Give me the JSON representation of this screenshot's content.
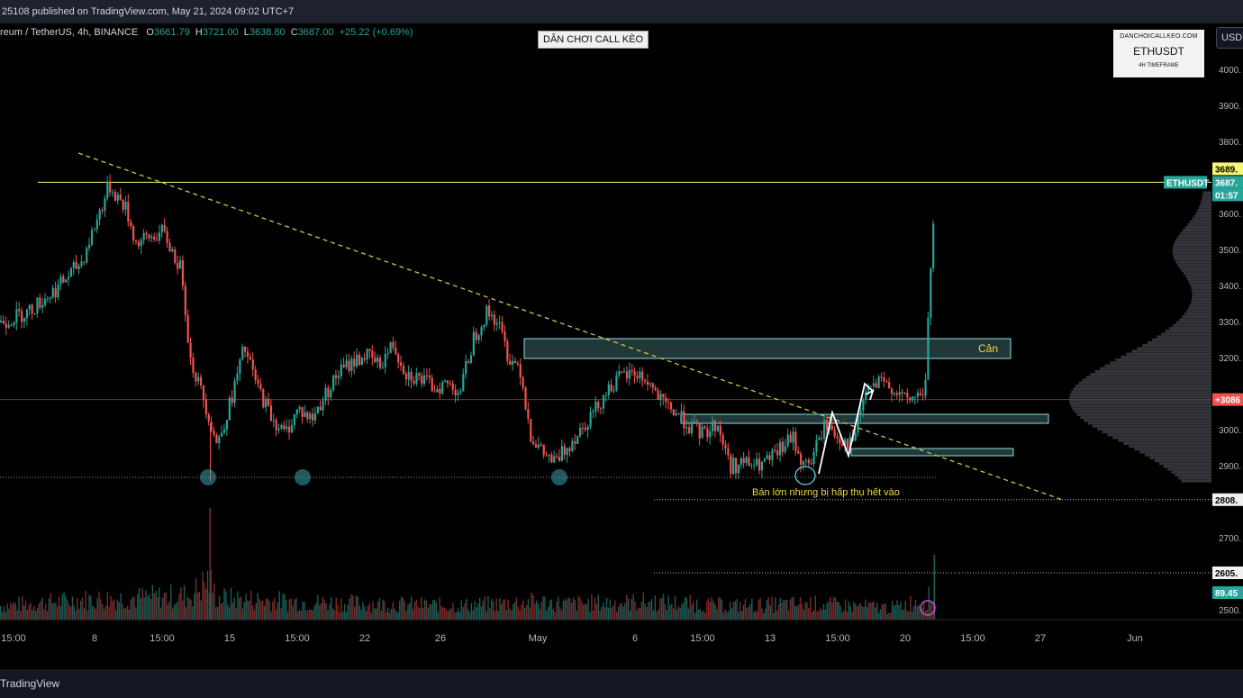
{
  "header": {
    "published": "25108 published on TradingView.com, May 21, 2024 09:02 UTC+7"
  },
  "legend": {
    "symbol": "reum / TetherUS, 4h, BINANCE",
    "o_label": "O",
    "o": "3661.79",
    "h_label": "H",
    "h": "3721.00",
    "l_label": "L",
    "l": "3638.80",
    "c_label": "C",
    "c": "3687.00",
    "change": "+25.22 (+0.69%)"
  },
  "title_box": "DÂN CHƠI CALL KÈO",
  "watermark": {
    "site": "DANCHOICALLKEO.COM",
    "pair": "ETHUSDT",
    "timeframe": "4H TIMEFRAME"
  },
  "currency_button": "USDT",
  "footer": {
    "brand": "TradingView"
  },
  "colors": {
    "up": "#26a69a",
    "down": "#ef5350",
    "resistance": "#f5f576",
    "trendline": "#c8c84a",
    "box_border": "#8fdcdc",
    "annotation": "#f5d547",
    "background": "#000000"
  },
  "annotations": {
    "resistance_zone": "Cản",
    "absorption_note": "Bán lớn nhưng bị hấp thụ hết vào"
  },
  "price_tags": {
    "ethusdt_label": "ETHUSDT",
    "last_price": "3687.",
    "countdown": "01:57",
    "resistance_price": "3689.",
    "poc_price": "+3086",
    "support_1": "2808.",
    "support_2": "2605.",
    "volume_value": "89.45"
  },
  "chart_data": {
    "type": "candlestick",
    "symbol": "ETHUSDT",
    "timeframe": "4h",
    "yticks": [
      2500,
      2600,
      2700,
      2800,
      2900,
      3000,
      3100,
      3200,
      3300,
      3400,
      3500,
      3600,
      3700,
      3800,
      3900,
      4000
    ],
    "ytick_labels": [
      "2500.",
      "2600.",
      "2700.",
      "2800.",
      "2900.",
      "3000.",
      "",
      "3200.",
      "3300.",
      "3400.",
      "3500.",
      "3600.",
      "",
      "3800.",
      "3900.",
      "4000."
    ],
    "ylim": [
      2475,
      4130
    ],
    "x_labels": [
      {
        "label": "15:00",
        "x": 0.5
      },
      {
        "label": "8",
        "x": 3.5
      },
      {
        "label": "15:00",
        "x": 6
      },
      {
        "label": "15",
        "x": 8.5
      },
      {
        "label": "15:00",
        "x": 11
      },
      {
        "label": "22",
        "x": 13.5
      },
      {
        "label": "26",
        "x": 16.3
      },
      {
        "label": "May",
        "x": 19.9
      },
      {
        "label": "6",
        "x": 23.5
      },
      {
        "label": "15:00",
        "x": 26
      },
      {
        "label": "13",
        "x": 28.5
      },
      {
        "label": "15:00",
        "x": 31
      },
      {
        "label": "20",
        "x": 33.5
      },
      {
        "label": "15:00",
        "x": 36
      },
      {
        "label": "27",
        "x": 38.5
      },
      {
        "label": "Jun",
        "x": 42
      }
    ],
    "xlim": [
      0,
      46
    ],
    "price_path": [
      [
        0,
        3300
      ],
      [
        1,
        3330
      ],
      [
        2,
        3390
      ],
      [
        3,
        3470
      ],
      [
        4,
        3680
      ],
      [
        4.6,
        3620
      ],
      [
        5,
        3520
      ],
      [
        6,
        3550
      ],
      [
        6.7,
        3440
      ],
      [
        7,
        3200
      ],
      [
        7.5,
        3090
      ],
      [
        8,
        2960
      ],
      [
        8.5,
        3080
      ],
      [
        9,
        3230
      ],
      [
        9.5,
        3120
      ],
      [
        10,
        3040
      ],
      [
        10.5,
        2990
      ],
      [
        11,
        3060
      ],
      [
        11.5,
        3030
      ],
      [
        12,
        3100
      ],
      [
        12.5,
        3160
      ],
      [
        13,
        3190
      ],
      [
        13.5,
        3210
      ],
      [
        14,
        3180
      ],
      [
        14.5,
        3240
      ],
      [
        15,
        3160
      ],
      [
        15.6,
        3140
      ],
      [
        16,
        3120
      ],
      [
        16.5,
        3130
      ],
      [
        17,
        3110
      ],
      [
        17.5,
        3260
      ],
      [
        18,
        3330
      ],
      [
        18.4,
        3300
      ],
      [
        18.8,
        3200
      ],
      [
        19.2,
        3180
      ],
      [
        19.6,
        2990
      ],
      [
        20,
        2940
      ],
      [
        20.5,
        2910
      ],
      [
        21,
        2960
      ],
      [
        21.5,
        3010
      ],
      [
        22,
        3060
      ],
      [
        22.5,
        3120
      ],
      [
        23,
        3150
      ],
      [
        23.5,
        3160
      ],
      [
        24,
        3130
      ],
      [
        24.5,
        3070
      ],
      [
        25,
        3050
      ],
      [
        25.5,
        3010
      ],
      [
        26,
        2990
      ],
      [
        26.5,
        3020
      ],
      [
        27,
        2900
      ],
      [
        27.5,
        2910
      ],
      [
        28,
        2900
      ],
      [
        28.5,
        2920
      ],
      [
        29,
        2960
      ],
      [
        29.3,
        2980
      ],
      [
        29.7,
        2900
      ],
      [
        30,
        2920
      ],
      [
        30.5,
        3020
      ],
      [
        31,
        2980
      ],
      [
        31.5,
        2960
      ],
      [
        32,
        3110
      ],
      [
        32.5,
        3130
      ],
      [
        33,
        3120
      ],
      [
        33.5,
        3080
      ],
      [
        34,
        3100
      ],
      [
        34.2,
        3110
      ],
      [
        34.4,
        3450
      ],
      [
        34.6,
        3687
      ]
    ],
    "volume_path": [
      [
        0,
        0.35
      ],
      [
        3,
        0.5
      ],
      [
        7,
        0.6
      ],
      [
        7.7,
        1.0
      ],
      [
        8,
        0.55
      ],
      [
        11,
        0.45
      ],
      [
        14,
        0.4
      ],
      [
        17,
        0.35
      ],
      [
        19.7,
        0.45
      ],
      [
        21,
        0.4
      ],
      [
        24,
        0.45
      ],
      [
        27,
        0.35
      ],
      [
        30,
        0.4
      ],
      [
        33,
        0.3
      ],
      [
        34.4,
        0.55
      ],
      [
        34.6,
        0.7
      ]
    ],
    "levels": {
      "resistance": 3689,
      "poc": 3086,
      "support_dotted": 2870,
      "support_1": 2808,
      "support_2": 2605
    },
    "trendline": [
      [
        2.9,
        3770
      ],
      [
        39.3,
        2808
      ]
    ],
    "zones": [
      {
        "name": "Cản",
        "x0": 19.4,
        "x1": 37.4,
        "y0": 3200,
        "y1": 3255
      },
      {
        "name": "",
        "x0": 25.2,
        "x1": 38.8,
        "y0": 3020,
        "y1": 3045
      },
      {
        "name": "",
        "x0": 31.5,
        "x1": 37.5,
        "y0": 2930,
        "y1": 2950
      }
    ],
    "white_path": [
      [
        30.3,
        2880
      ],
      [
        30.8,
        3050
      ],
      [
        31.4,
        2930
      ],
      [
        32,
        3130
      ],
      [
        32.3,
        3110
      ]
    ],
    "circles": [
      [
        7.7,
        2870
      ],
      [
        11.2,
        2870
      ],
      [
        20.7,
        2870
      ],
      [
        29.8,
        2880
      ]
    ]
  }
}
